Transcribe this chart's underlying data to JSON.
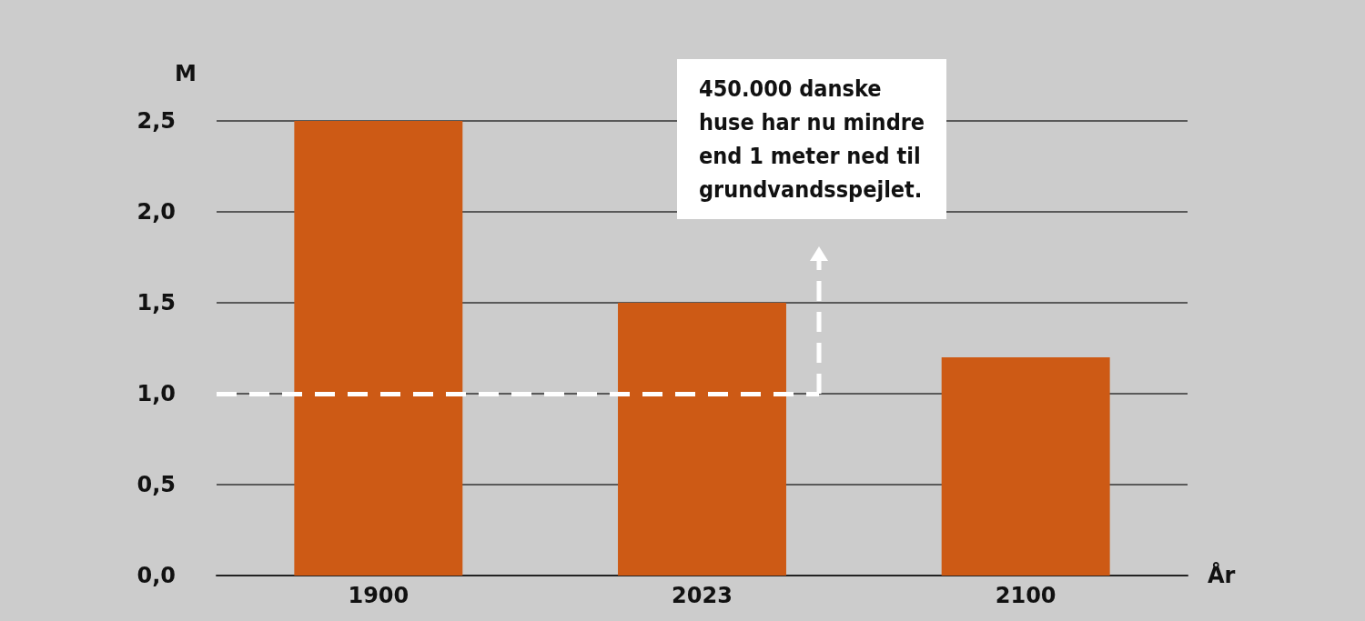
{
  "chart_data": {
    "type": "bar",
    "categories": [
      "1900",
      "2023",
      "2100"
    ],
    "values": [
      2.5,
      1.5,
      1.2
    ],
    "color": "#cd5a15",
    "ylabel": "M",
    "xlabel": "År",
    "ylim": [
      0,
      2.5
    ],
    "yticks": [
      {
        "value": 0,
        "label": "0,0"
      },
      {
        "value": 0.5,
        "label": "0,5"
      },
      {
        "value": 1,
        "label": "1,0"
      },
      {
        "value": 1.5,
        "label": "1,5"
      },
      {
        "value": 2,
        "label": "2,0"
      },
      {
        "value": 2.5,
        "label": "2,5"
      }
    ],
    "grid": "y",
    "ref_lines": [
      {
        "axis": "y",
        "value": 1,
        "color": "#ffffff",
        "line_style": "dashed"
      }
    ],
    "annotations": [
      "450.000 danske\nhuse har nu mindre\nend 1 meter ned til\ngrundvandsspejlet."
    ]
  }
}
